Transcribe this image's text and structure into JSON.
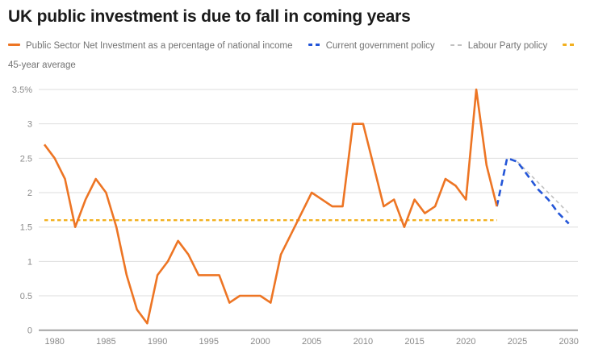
{
  "title": "UK public investment is due to fall in coming years",
  "chart_data": {
    "type": "line",
    "title": "UK public investment is due to fall in coming years",
    "xlabel": "",
    "ylabel": "",
    "xlim": [
      1979,
      2030
    ],
    "ylim": [
      0,
      3.5
    ],
    "grid": "horizontal",
    "legend_position": "top",
    "x_ticks": [
      1980,
      1985,
      1990,
      1995,
      2000,
      2005,
      2010,
      2015,
      2020,
      2025,
      2030
    ],
    "y_ticks": [
      {
        "label": "3.5%",
        "value": 3.5
      },
      {
        "label": "3",
        "value": 3
      },
      {
        "label": "2.5",
        "value": 2.5
      },
      {
        "label": "2",
        "value": 2
      },
      {
        "label": "1.5",
        "value": 1.5
      },
      {
        "label": "1",
        "value": 1
      },
      {
        "label": "0.5",
        "value": 0.5
      },
      {
        "label": "0",
        "value": 0
      }
    ],
    "series": [
      {
        "id": "psni",
        "name": "Public Sector Net Investment as a percentage of national income",
        "color": "#ED7524",
        "line_style": "solid",
        "x": [
          1979,
          1980,
          1981,
          1982,
          1983,
          1984,
          1985,
          1986,
          1987,
          1988,
          1989,
          1990,
          1991,
          1992,
          1993,
          1994,
          1995,
          1996,
          1997,
          1998,
          1999,
          2000,
          2001,
          2002,
          2003,
          2004,
          2005,
          2006,
          2007,
          2008,
          2009,
          2010,
          2011,
          2012,
          2013,
          2014,
          2015,
          2016,
          2017,
          2018,
          2019,
          2020,
          2021,
          2022,
          2023
        ],
        "y": [
          2.7,
          2.5,
          2.2,
          1.5,
          1.9,
          2.2,
          2.0,
          1.5,
          0.8,
          0.3,
          0.1,
          0.8,
          1.0,
          1.3,
          1.1,
          0.8,
          0.8,
          0.8,
          0.4,
          0.5,
          0.5,
          0.5,
          0.4,
          1.1,
          1.4,
          1.7,
          2.0,
          1.9,
          1.8,
          1.8,
          3.0,
          3.0,
          2.4,
          1.8,
          1.9,
          1.5,
          1.9,
          1.7,
          1.8,
          2.2,
          2.1,
          1.9,
          3.5,
          2.4,
          1.8
        ]
      },
      {
        "id": "current-government-policy",
        "name": "Current government policy",
        "color": "#2456D8",
        "line_style": "dashed",
        "x": [
          2023,
          2024,
          2025,
          2026,
          2027,
          2028,
          2029,
          2030
        ],
        "y": [
          1.8,
          2.5,
          2.45,
          2.25,
          2.05,
          1.9,
          1.7,
          1.55
        ]
      },
      {
        "id": "labour-party-policy",
        "name": "Labour Party policy",
        "color": "#C0C0C0",
        "line_style": "dashed",
        "x": [
          2025,
          2026,
          2027,
          2028,
          2029,
          2030
        ],
        "y": [
          2.45,
          2.3,
          2.15,
          2.0,
          1.85,
          1.7
        ]
      },
      {
        "id": "45-year-average",
        "name": "45-year average",
        "color": "#F2B01F",
        "line_style": "dashed",
        "x": [
          1979,
          2023
        ],
        "y": [
          1.6,
          1.6
        ]
      }
    ]
  }
}
